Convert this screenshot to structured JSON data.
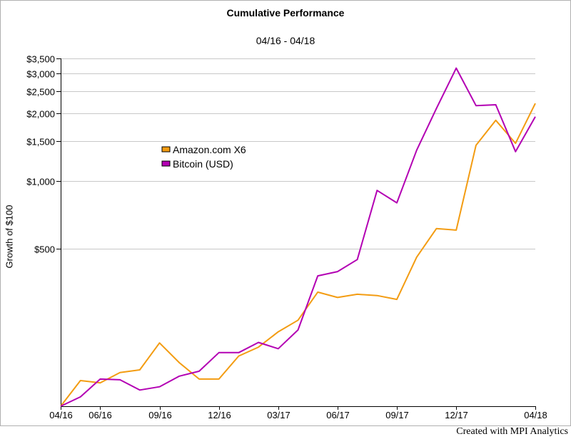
{
  "chart_data": {
    "type": "line",
    "title": "Cumulative Performance",
    "subtitle": "04/16 - 04/18",
    "ylabel": "Growth of $100",
    "yscale": "log",
    "ylim": [
      100,
      3500
    ],
    "grid": true,
    "legend_position": "center-left",
    "x_tick_labels": [
      "04/16",
      "06/16",
      "09/16",
      "12/16",
      "03/17",
      "06/17",
      "09/17",
      "12/17",
      "04/18"
    ],
    "y_ticks": [
      {
        "value": 500,
        "label": "$500"
      },
      {
        "value": 1000,
        "label": "$1,000"
      },
      {
        "value": 1500,
        "label": "$1,500"
      },
      {
        "value": 2000,
        "label": "$2,000"
      },
      {
        "value": 2500,
        "label": "$2,500"
      },
      {
        "value": 3000,
        "label": "$3,000"
      },
      {
        "value": 3500,
        "label": "$3,500"
      }
    ],
    "x": [
      "04/16",
      "05/16",
      "06/16",
      "07/16",
      "08/16",
      "09/16",
      "10/16",
      "11/16",
      "12/16",
      "01/17",
      "02/17",
      "03/17",
      "04/17",
      "05/17",
      "06/17",
      "07/17",
      "08/17",
      "09/17",
      "10/17",
      "11/17",
      "12/17",
      "01/18",
      "02/18",
      "03/18",
      "04/18"
    ],
    "series": [
      {
        "name": "Amazon.com X6",
        "color": "#f39c12",
        "values": [
          100,
          130,
          127,
          141,
          145,
          191,
          156,
          132,
          132,
          167,
          183,
          214,
          241,
          321,
          304,
          314,
          310,
          298,
          459,
          615,
          605,
          1440,
          1860,
          1470,
          2210
        ]
      },
      {
        "name": "Bitcoin (USD)",
        "color": "#b300b3",
        "values": [
          100,
          110,
          132,
          131,
          118,
          122,
          136,
          143,
          173,
          173,
          192,
          180,
          218,
          379,
          396,
          448,
          908,
          800,
          1370,
          2100,
          3170,
          2160,
          2180,
          1350,
          1930
        ]
      }
    ]
  },
  "footer": {
    "credit": "Created with MPI Analytics"
  }
}
